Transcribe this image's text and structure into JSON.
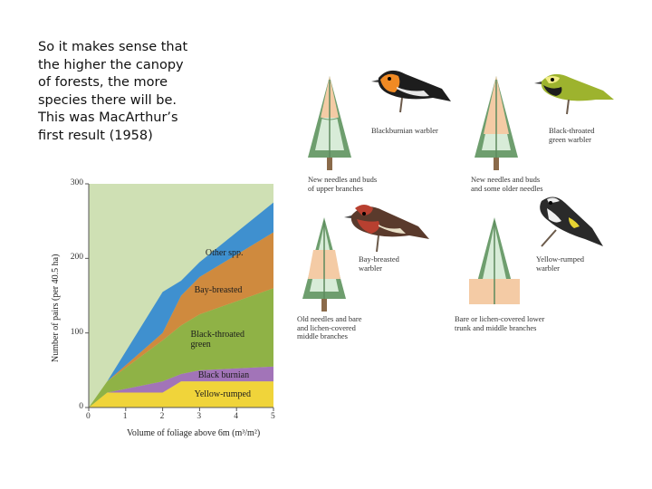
{
  "slide": {
    "text": "So it makes sense that\nthe higher the canopy\nof forests, the more\nspecies there will be.\nThis was MacArthur’s\nfirst result (1958)"
  },
  "colors": {
    "chart_bg": "#cfe0b4",
    "yellow": "#f0d43a",
    "purple": "#a274b8",
    "green": "#8fb246",
    "orange": "#cf8a3e",
    "blue": "#3f90cf",
    "tree_green": "#6e9e6e",
    "tree_light": "#d8ecd8",
    "tree_peach": "#f4cba5"
  },
  "chart_data": {
    "type": "area",
    "stacked": true,
    "xlabel": "Volume of foliage above 6m (m³/m²)",
    "ylabel": "Number of pairs (per 40.5 ha)",
    "xlim": [
      0,
      5
    ],
    "ylim": [
      0,
      300
    ],
    "xticks": [
      0,
      1,
      2,
      3,
      4,
      5
    ],
    "yticks": [
      0,
      100,
      200,
      300
    ],
    "x": [
      0,
      0.5,
      2.0,
      2.5,
      3.0,
      5.0
    ],
    "series": [
      {
        "name": "Yellow-rumped",
        "color": "yellow",
        "values": [
          0,
          20,
          20,
          35,
          35,
          35
        ]
      },
      {
        "name": "Black burnian",
        "color": "purple",
        "values": [
          0,
          0,
          15,
          10,
          15,
          20
        ]
      },
      {
        "name": "Black-throated green",
        "color": "green",
        "values": [
          0,
          15,
          55,
          65,
          75,
          105
        ]
      },
      {
        "name": "Bay-breasted",
        "color": "orange",
        "values": [
          0,
          0,
          10,
          40,
          50,
          75
        ]
      },
      {
        "name": "Other spp.",
        "color": "blue",
        "values": [
          0,
          0,
          55,
          20,
          20,
          40
        ]
      }
    ]
  },
  "birds": [
    {
      "caption": "Blackburnian warbler",
      "colors": [
        "#1d1d1d",
        "#f08a24",
        "#e7e7e7"
      ]
    },
    {
      "caption": "Black-throated\ngreen warbler",
      "colors": [
        "#9db32e",
        "#1d1d1d",
        "#f1ec86"
      ]
    },
    {
      "caption": "Bay-breasted\nwarbler",
      "colors": [
        "#5a3a2c",
        "#b84030",
        "#e9e0c8"
      ]
    },
    {
      "caption": "Yellow-rumped\nwarbler",
      "colors": [
        "#2a2a2a",
        "#e7d432",
        "#efefef"
      ]
    }
  ],
  "trees": [
    {
      "caption": "New needles and buds\nof upper branches"
    },
    {
      "caption": "New needles and buds\nand some older needles"
    },
    {
      "caption": "Old needles and bare\nand lichen-covered\nmiddle branches"
    },
    {
      "caption": "Bare or lichen-covered lower\ntrunk and middle branches"
    }
  ]
}
